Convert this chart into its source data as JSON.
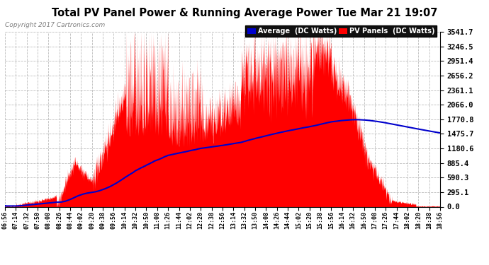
{
  "title": "Total PV Panel Power & Running Average Power Tue Mar 21 19:07",
  "copyright": "Copyright 2017 Cartronics.com",
  "legend_labels": [
    "Average  (DC Watts)",
    "PV Panels  (DC Watts)"
  ],
  "legend_colors": [
    "#0000cc",
    "#ff0000"
  ],
  "background_color": "#ffffff",
  "plot_bg_color": "#ffffff",
  "grid_color": "#bbbbbb",
  "pv_fill_color": "#ff0000",
  "avg_line_color": "#0000cc",
  "y_max": 3541.7,
  "y_min": 0.0,
  "y_ticks": [
    0.0,
    295.1,
    590.3,
    885.4,
    1180.6,
    1475.7,
    1770.8,
    2066.0,
    2361.1,
    2656.2,
    2951.4,
    3246.5,
    3541.7
  ],
  "x_tick_labels": [
    "06:56",
    "07:14",
    "07:32",
    "07:50",
    "08:08",
    "08:26",
    "08:44",
    "09:02",
    "09:20",
    "09:38",
    "09:56",
    "10:14",
    "10:32",
    "10:50",
    "11:08",
    "11:26",
    "11:44",
    "12:02",
    "12:20",
    "12:38",
    "12:56",
    "13:14",
    "13:32",
    "13:50",
    "14:08",
    "14:26",
    "14:44",
    "15:02",
    "15:20",
    "15:38",
    "15:56",
    "16:14",
    "16:32",
    "16:50",
    "17:08",
    "17:26",
    "17:44",
    "18:02",
    "18:20",
    "18:38",
    "18:56"
  ]
}
